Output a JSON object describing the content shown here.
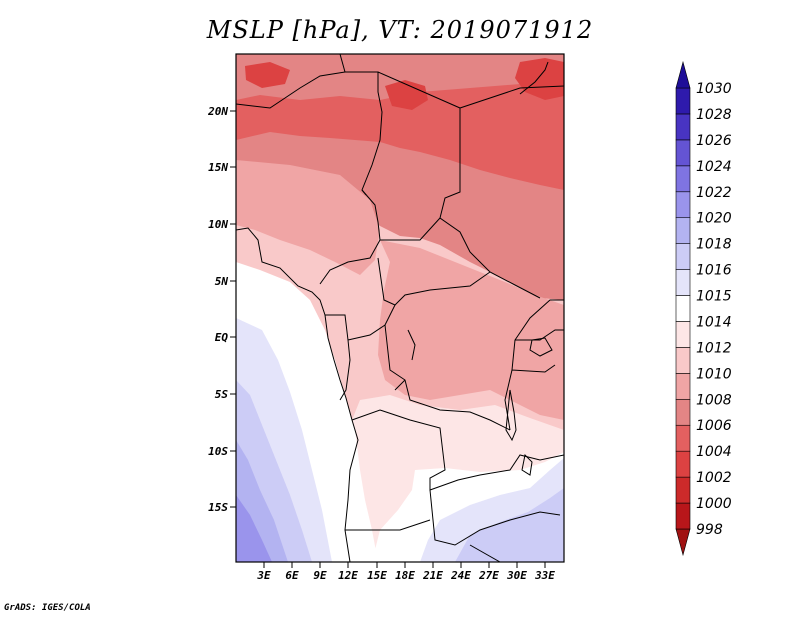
{
  "title": "MSLP [hPa], VT: 2019071912",
  "credit": "GrADS: IGES/COLA",
  "axes": {
    "lat_ticks": [
      "20N",
      "15N",
      "10N",
      "5N",
      "EQ",
      "5S",
      "10S",
      "15S"
    ],
    "lon_ticks": [
      "3E",
      "6E",
      "9E",
      "12E",
      "15E",
      "18E",
      "21E",
      "24E",
      "27E",
      "30E",
      "33E"
    ]
  },
  "colorbar": {
    "unit": "hPa",
    "levels": [
      "998",
      "1000",
      "1002",
      "1004",
      "1006",
      "1008",
      "1010",
      "1012",
      "1014",
      "1015",
      "1016",
      "1018",
      "1020",
      "1022",
      "1024",
      "1026",
      "1028",
      "1030"
    ],
    "colors": [
      "#a01212",
      "#b8161a",
      "#cc2a2a",
      "#dc4242",
      "#e36060",
      "#e38585",
      "#f0a5a5",
      "#f9c9c9",
      "#fde6e6",
      "#ffffff",
      "#e4e4fa",
      "#ccccf6",
      "#b3b3f1",
      "#9a94ec",
      "#7f74e2",
      "#6454d4",
      "#4834c2",
      "#2e1aac",
      "#1e0e98"
    ]
  }
}
